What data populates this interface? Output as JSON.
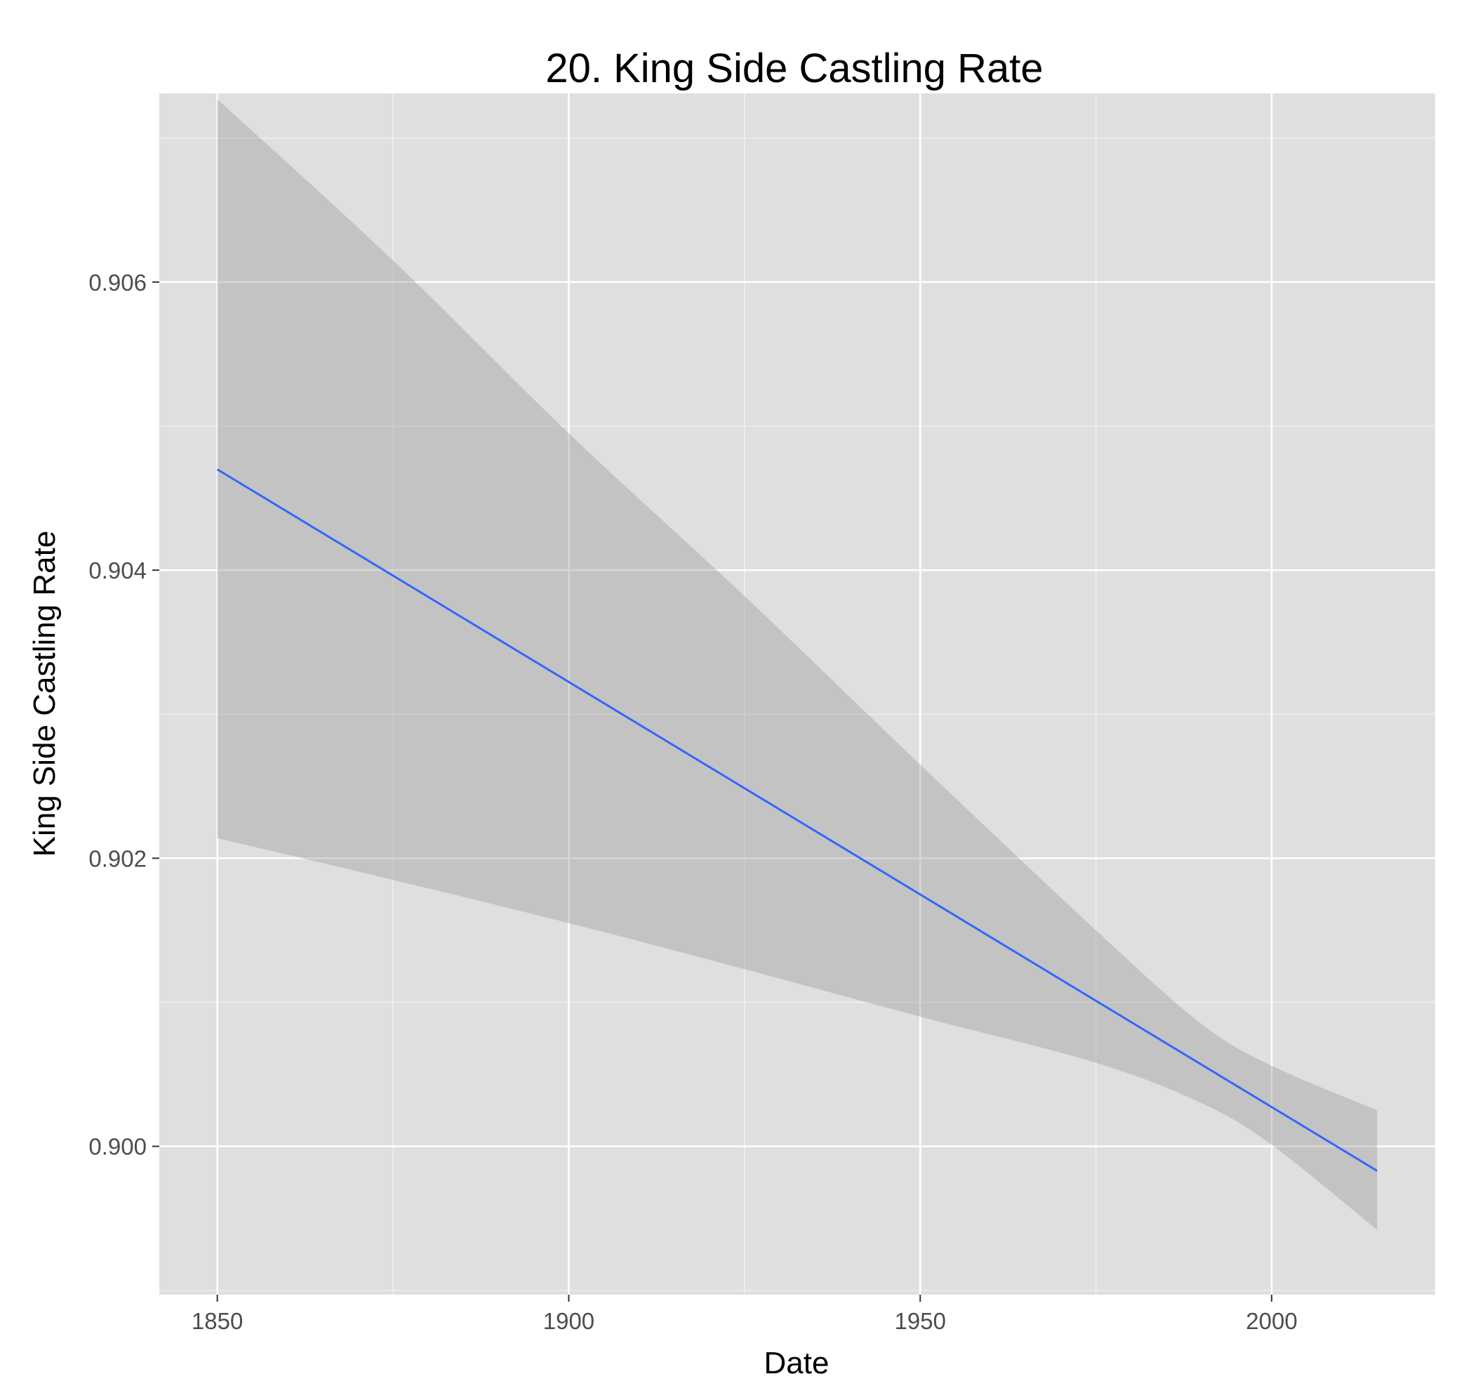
{
  "chart_data": {
    "type": "line",
    "title": "20. King Side Castling Rate",
    "xlabel": "Date",
    "ylabel": "King Side Castling Rate",
    "xlim": [
      1841.75,
      2023.25
    ],
    "ylim": [
      0.89897,
      0.90731
    ],
    "x_ticks": [
      1850,
      1900,
      1950,
      2000
    ],
    "x_tick_labels": [
      "1850",
      "1900",
      "1950",
      "2000"
    ],
    "y_ticks": [
      0.9,
      0.902,
      0.904,
      0.906
    ],
    "y_tick_labels": [
      "0.900",
      "0.902",
      "0.904",
      "0.906"
    ],
    "grid": true,
    "legend": "none",
    "colors": {
      "panel": "#DFDFDF",
      "grid": "#FFFFFF",
      "line": "#3366FF",
      "band": "#999999",
      "tick_text": "#4D4D4D"
    },
    "series": [
      {
        "x": [
          1850,
          2015
        ],
        "y": [
          0.9047,
          0.89983
        ]
      }
    ],
    "confidence_band": {
      "x": [
        1850,
        1875,
        1900,
        1925,
        1950,
        1975,
        1990,
        2000,
        2015
      ],
      "lower": [
        0.90214,
        0.90185,
        0.90155,
        0.90123,
        0.9009,
        0.90058,
        0.9003,
        0.90001,
        0.89942
      ],
      "upper": [
        0.90727,
        0.90615,
        0.90495,
        0.90382,
        0.90265,
        0.9015,
        0.90085,
        0.90056,
        0.90025
      ]
    }
  }
}
